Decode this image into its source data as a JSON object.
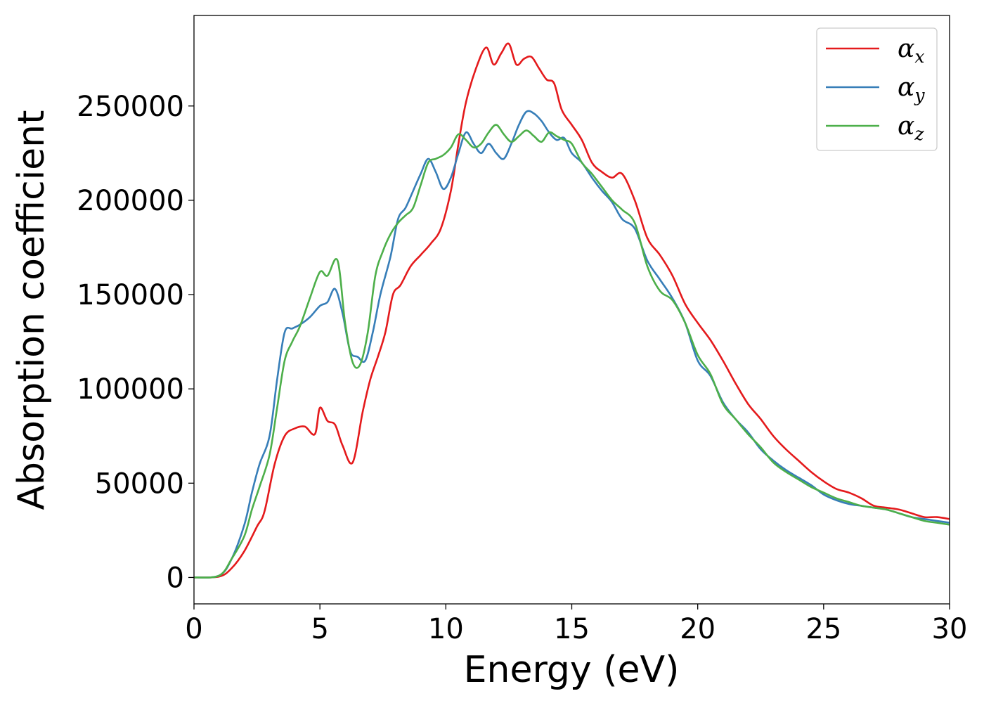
{
  "chart_data": {
    "type": "line",
    "title": "",
    "xlabel": "Energy (eV)",
    "ylabel": "Absorption coefficient",
    "xlim": [
      0,
      30
    ],
    "ylim": [
      -14000,
      298000
    ],
    "xticks": [
      0,
      5,
      10,
      15,
      20,
      25,
      30
    ],
    "yticks": [
      0,
      50000,
      100000,
      150000,
      200000,
      250000
    ],
    "grid": false,
    "legend_position": "top-right",
    "series": [
      {
        "name": "αx",
        "base": "α",
        "subscript": "x",
        "color": "#e41a1c",
        "x": [
          0,
          1,
          1.5,
          2,
          2.5,
          2.8,
          3.2,
          3.6,
          4.0,
          4.4,
          4.8,
          5.0,
          5.3,
          5.6,
          5.9,
          6.3,
          6.7,
          7.0,
          7.3,
          7.6,
          7.9,
          8.2,
          8.6,
          9.0,
          9.4,
          9.8,
          10.2,
          10.5,
          10.8,
          11.2,
          11.6,
          11.9,
          12.2,
          12.5,
          12.8,
          13.1,
          13.4,
          13.7,
          14.0,
          14.3,
          14.6,
          15.0,
          15.4,
          15.8,
          16.2,
          16.6,
          17.0,
          17.5,
          18.0,
          18.5,
          19.0,
          19.5,
          20.0,
          20.5,
          21.0,
          21.5,
          22.0,
          22.5,
          23.0,
          23.5,
          24.0,
          24.5,
          25.0,
          25.5,
          26.0,
          26.5,
          27.0,
          27.5,
          28.0,
          28.5,
          29.0,
          29.5,
          30
        ],
        "y": [
          0,
          500,
          5000,
          14000,
          27000,
          35000,
          60000,
          75000,
          79000,
          80000,
          76000,
          90000,
          83000,
          81000,
          70000,
          61000,
          88000,
          105000,
          117000,
          130000,
          150000,
          155000,
          165000,
          171000,
          177000,
          185000,
          205000,
          230000,
          252000,
          270000,
          281000,
          272000,
          278000,
          283000,
          272000,
          275000,
          276000,
          270000,
          264000,
          262000,
          248000,
          240000,
          232000,
          220000,
          215000,
          212000,
          214000,
          200000,
          180000,
          171000,
          160000,
          145000,
          135000,
          126000,
          115000,
          103000,
          92000,
          84000,
          75000,
          68000,
          62000,
          56000,
          51000,
          47000,
          45000,
          42000,
          38000,
          37000,
          36000,
          34000,
          32000,
          32000,
          31000
        ]
      },
      {
        "name": "αy",
        "base": "α",
        "subscript": "y",
        "color": "#377eb8",
        "x": [
          0,
          1,
          1.5,
          2,
          2.3,
          2.6,
          3.0,
          3.3,
          3.6,
          3.9,
          4.2,
          4.6,
          5.0,
          5.3,
          5.6,
          5.9,
          6.2,
          6.5,
          6.8,
          7.1,
          7.4,
          7.8,
          8.1,
          8.4,
          8.7,
          9.0,
          9.3,
          9.6,
          9.9,
          10.2,
          10.5,
          10.8,
          11.1,
          11.4,
          11.7,
          12.0,
          12.3,
          12.6,
          12.9,
          13.2,
          13.5,
          13.8,
          14.1,
          14.4,
          14.7,
          15.0,
          15.4,
          15.8,
          16.2,
          16.6,
          17.0,
          17.5,
          18.0,
          18.5,
          19.0,
          19.5,
          20.0,
          20.5,
          21.0,
          21.5,
          22.0,
          22.5,
          23.0,
          23.5,
          24.0,
          24.5,
          25.0,
          25.5,
          26.0,
          26.5,
          27.0,
          27.5,
          28.0,
          28.5,
          29.0,
          29.5,
          30
        ],
        "y": [
          0,
          1000,
          10000,
          28000,
          45000,
          60000,
          75000,
          105000,
          130000,
          132000,
          134000,
          138000,
          144000,
          146000,
          153000,
          140000,
          120000,
          117000,
          115000,
          130000,
          150000,
          170000,
          190000,
          196000,
          205000,
          214000,
          222000,
          215000,
          206000,
          212000,
          225000,
          236000,
          230000,
          225000,
          230000,
          225000,
          222000,
          230000,
          240000,
          247000,
          246000,
          242000,
          236000,
          232000,
          233000,
          225000,
          220000,
          212000,
          205000,
          199000,
          190000,
          185000,
          168000,
          158000,
          148000,
          135000,
          115000,
          107000,
          93000,
          84000,
          77000,
          68000,
          62000,
          57000,
          53000,
          49000,
          44000,
          41000,
          39000,
          38000,
          37000,
          36000,
          34000,
          32000,
          31000,
          30000,
          29000
        ]
      },
      {
        "name": "αz",
        "base": "α",
        "subscript": "z",
        "color": "#4daf4a",
        "x": [
          0,
          1,
          1.5,
          2,
          2.3,
          2.6,
          3.0,
          3.3,
          3.6,
          3.9,
          4.2,
          4.6,
          5.0,
          5.3,
          5.7,
          6.0,
          6.3,
          6.6,
          6.9,
          7.2,
          7.5,
          7.8,
          8.1,
          8.4,
          8.7,
          9.0,
          9.3,
          9.6,
          9.9,
          10.2,
          10.5,
          10.8,
          11.1,
          11.4,
          11.7,
          12.0,
          12.3,
          12.6,
          12.9,
          13.2,
          13.5,
          13.8,
          14.1,
          14.4,
          14.7,
          15.0,
          15.4,
          15.8,
          16.2,
          16.6,
          17.0,
          17.5,
          18.0,
          18.5,
          19.0,
          19.5,
          20.0,
          20.5,
          21.0,
          21.5,
          22.0,
          22.5,
          23.0,
          23.5,
          24.0,
          24.5,
          25.0,
          25.5,
          26.0,
          26.5,
          27.0,
          27.5,
          28.0,
          28.5,
          29.0,
          29.5,
          30
        ],
        "y": [
          0,
          1000,
          10000,
          22000,
          36000,
          48000,
          65000,
          90000,
          115000,
          125000,
          133000,
          148000,
          162000,
          160000,
          168000,
          135000,
          114000,
          113000,
          130000,
          160000,
          173000,
          182000,
          188000,
          192000,
          196000,
          208000,
          220000,
          222000,
          224000,
          228000,
          235000,
          232000,
          228000,
          230000,
          236000,
          240000,
          235000,
          231000,
          234000,
          237000,
          234000,
          231000,
          236000,
          234000,
          232000,
          230000,
          220000,
          214000,
          207000,
          200000,
          195000,
          188000,
          165000,
          152000,
          147000,
          135000,
          118000,
          108000,
          92000,
          84000,
          76000,
          69000,
          61000,
          56000,
          52000,
          48000,
          45000,
          42000,
          40000,
          38000,
          37000,
          36000,
          34000,
          32000,
          30000,
          29000,
          28000
        ]
      }
    ]
  }
}
